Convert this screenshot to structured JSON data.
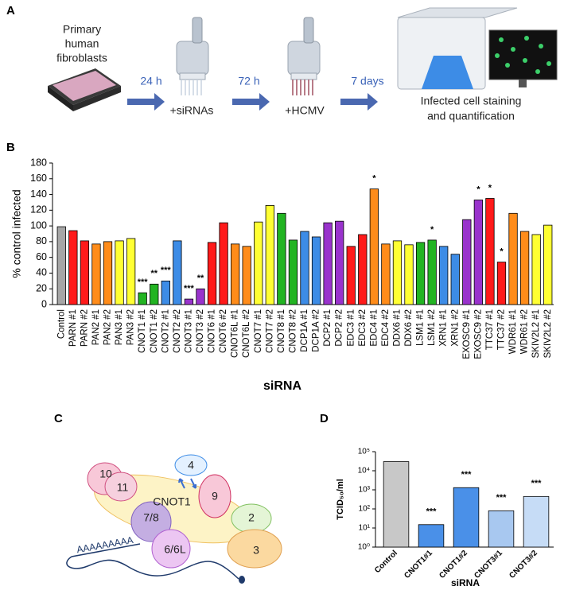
{
  "panel_labels": [
    "A",
    "B",
    "C",
    "D"
  ],
  "workflow": {
    "start": [
      "Primary",
      "human",
      "fibroblasts"
    ],
    "steps": [
      {
        "time": "24 h",
        "action": "+siRNAs"
      },
      {
        "time": "72 h",
        "action": "+HCMV"
      },
      {
        "time": "7 days",
        "action": [
          "Infected cell staining",
          "and quantification"
        ]
      }
    ]
  },
  "chart_data": [
    {
      "type": "bar",
      "y_label": "% control infected",
      "x_label": "siRNA",
      "categories": [
        "Control",
        "PARN #1",
        "PARN #2",
        "PAN2 #1",
        "PAN2 #2",
        "PAN3 #1",
        "PAN3 #2",
        "CNOT1 #1",
        "CNOT1 #2",
        "CNOT2 #1",
        "CNOT2 #2",
        "CNOT3 #1",
        "CNOT3 #2",
        "CNOT6 #1",
        "CNOT6 #2",
        "CNOT6L #1",
        "CNOT6L #2",
        "CNOT7 #1",
        "CNOT7 #2",
        "CNOT8 #1",
        "CNOT8 #2",
        "DCP1A #1",
        "DCP1A #2",
        "DCP2 #1",
        "DCP2 #2",
        "EDC3 #1",
        "EDC3 #2",
        "EDC4 #1",
        "EDC4 #2",
        "DDX6 #1",
        "DDX6 #2",
        "LSM1 #1",
        "LSM1 #2",
        "XRN1 #1",
        "XRN1 #2",
        "EXOSC9 #1",
        "EXOSC9 #2",
        "TTC37 #1",
        "TTC37 #2",
        "WDR61 #1",
        "WDR61 #2",
        "SKIV2L2 #1",
        "SKIV2L2 #2"
      ],
      "values": [
        99,
        94,
        81,
        77,
        80,
        81,
        84,
        15,
        26,
        30,
        81,
        7,
        20,
        79,
        104,
        77,
        74,
        105,
        126,
        116,
        82,
        93,
        86,
        104,
        106,
        74,
        89,
        147,
        77,
        81,
        76,
        79,
        82,
        74,
        64,
        108,
        133,
        135,
        54,
        116,
        93,
        89,
        101
      ],
      "colors": [
        "#a6a6a6",
        "#ff1a1a",
        "#ff1a1a",
        "#ff8c1a",
        "#ff8c1a",
        "#ffff33",
        "#ffff33",
        "#22b422",
        "#22b422",
        "#3d8ce6",
        "#3d8ce6",
        "#9933cc",
        "#9933cc",
        "#ff1a1a",
        "#ff1a1a",
        "#ff8c1a",
        "#ff8c1a",
        "#ffff33",
        "#ffff33",
        "#22b422",
        "#22b422",
        "#3d8ce6",
        "#3d8ce6",
        "#9933cc",
        "#9933cc",
        "#ff1a1a",
        "#ff1a1a",
        "#ff8c1a",
        "#ff8c1a",
        "#ffff33",
        "#ffff33",
        "#22b422",
        "#22b422",
        "#3d8ce6",
        "#3d8ce6",
        "#9933cc",
        "#9933cc",
        "#ff1a1a",
        "#ff1a1a",
        "#ff8c1a",
        "#ff8c1a",
        "#ffff33",
        "#ffff33"
      ],
      "ylim": [
        0,
        180
      ],
      "yticks": [
        0,
        20,
        40,
        60,
        80,
        100,
        120,
        140,
        160,
        180
      ],
      "log_scale": false,
      "annotations": [
        {
          "category": "CNOT1 #1",
          "text": "***"
        },
        {
          "category": "CNOT1 #2",
          "text": "**"
        },
        {
          "category": "CNOT2 #1",
          "text": "***"
        },
        {
          "category": "CNOT3 #1",
          "text": "***"
        },
        {
          "category": "CNOT3 #2",
          "text": "**"
        },
        {
          "category": "EDC4 #1",
          "text": "*"
        },
        {
          "category": "LSM1 #2",
          "text": "*"
        },
        {
          "category": "EXOSC9 #2",
          "text": "*"
        },
        {
          "category": "TTC37 #1",
          "text": "*"
        },
        {
          "category": "TTC37 #2",
          "text": "*"
        }
      ]
    },
    {
      "type": "bar",
      "y_label": "TCID₅₀/ml",
      "x_label": "siRNA",
      "categories": [
        "Control",
        "CNOT1#1",
        "CNOT1#2",
        "CNOT3#1",
        "CNOT3#2"
      ],
      "values": [
        30000,
        15,
        1300,
        80,
        450
      ],
      "colors": [
        "#c8c8c8",
        "#4a90e8",
        "#4a90e8",
        "#a8c8f0",
        "#c6dcf6"
      ],
      "ylim": [
        1,
        100000
      ],
      "log_scale": true,
      "yticks": [
        {
          "value": 1,
          "label": "10⁰"
        },
        {
          "value": 10,
          "label": "10¹"
        },
        {
          "value": 100,
          "label": "10²"
        },
        {
          "value": 1000,
          "label": "10³"
        },
        {
          "value": 10000,
          "label": "10⁴"
        },
        {
          "value": 100000,
          "label": "10⁵"
        }
      ],
      "annotations": [
        {
          "category": "CNOT1#1",
          "text": "***"
        },
        {
          "category": "CNOT1#2",
          "text": "***"
        },
        {
          "category": "CNOT3#1",
          "text": "***"
        },
        {
          "category": "CNOT3#2",
          "text": "***"
        }
      ]
    }
  ],
  "diagram": {
    "nodes": [
      "10",
      "11",
      "4",
      "CNOT1",
      "9",
      "7/8",
      "2",
      "6/6L",
      "3"
    ],
    "tail": "AAAAAAAAA"
  }
}
